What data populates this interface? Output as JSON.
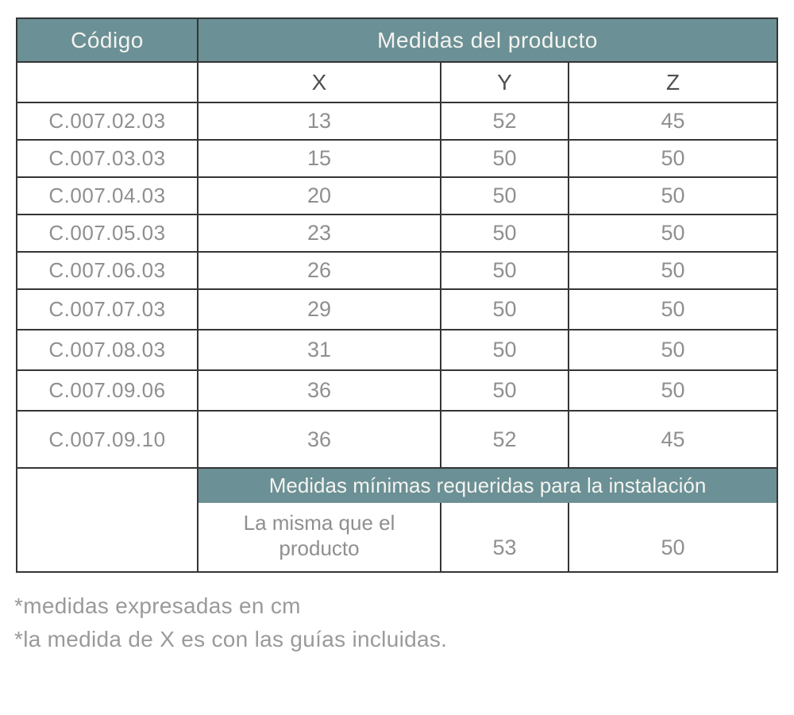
{
  "table": {
    "header": {
      "codigo": "Código",
      "medidas": "Medidas del producto"
    },
    "axis_labels": {
      "x": "X",
      "y": "Y",
      "z": "Z"
    },
    "rows": [
      {
        "code": "C.007.02.03",
        "x": "13",
        "y": "52",
        "z": "45"
      },
      {
        "code": "C.007.03.03",
        "x": "15",
        "y": "50",
        "z": "50"
      },
      {
        "code": "C.007.04.03",
        "x": "20",
        "y": "50",
        "z": "50"
      },
      {
        "code": "C.007.05.03",
        "x": "23",
        "y": "50",
        "z": "50"
      },
      {
        "code": "C.007.06.03",
        "x": "26",
        "y": "50",
        "z": "50"
      },
      {
        "code": "C.007.07.03",
        "x": "29",
        "y": "50",
        "z": "50"
      },
      {
        "code": "C.007.08.03",
        "x": "31",
        "y": "50",
        "z": "50"
      },
      {
        "code": "C.007.09.06",
        "x": "36",
        "y": "50",
        "z": "50"
      },
      {
        "code": "C.007.09.10",
        "x": "36",
        "y": "52",
        "z": "45"
      }
    ],
    "installation": {
      "title": "Medidas mínimas requeridas para la instalación",
      "x": "La misma que el producto",
      "y": "53",
      "z": "50"
    }
  },
  "notes": {
    "line1": "*medidas expresadas en cm",
    "line2": "*la medida de X es con las guías incluidas."
  },
  "colors": {
    "accent_teal": "#6b9095",
    "body_text_gray": "#8f8f8f",
    "axis_text_gray": "#4f4f4f",
    "note_text_gray": "#9a9a9a",
    "border_dark": "#353535"
  }
}
